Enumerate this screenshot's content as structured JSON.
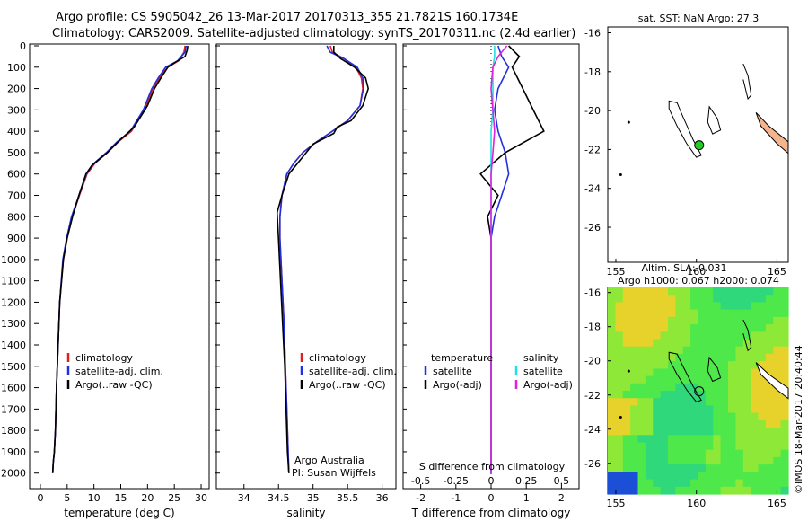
{
  "header": {
    "line1": "Argo profile: CS 5905042_26 13-Mar-2017 20170313_355 21.7821S 160.1734E",
    "line2": "Climatology: CARS2009. Satellite-adjusted climatology: synTS_20170311.nc (2.4d earlier)"
  },
  "colors": {
    "climatology": "#e02020",
    "satellite": "#2030e0",
    "argo": "#000000",
    "sat_salinity": "#20e0e0",
    "argo_salinity_adj": "#e020e0",
    "marker": "#22cc22",
    "land": "#f4b48c"
  },
  "chart_data": [
    {
      "type": "line",
      "id": "temperature",
      "xlabel": "temperature (deg C)",
      "ylabel": "",
      "xlim": [
        -1,
        31
      ],
      "ylim": [
        0,
        2060
      ],
      "xticks": [
        0,
        5,
        10,
        15,
        20,
        25,
        30
      ],
      "yticks": [
        0,
        100,
        200,
        300,
        400,
        500,
        600,
        700,
        800,
        900,
        1000,
        1100,
        1200,
        1300,
        1400,
        1500,
        1600,
        1700,
        1800,
        1900,
        2000
      ],
      "legend": [
        "climatology",
        "satellite-adj. clim.",
        "Argo(..raw -QC)"
      ],
      "series": [
        {
          "name": "climatology",
          "x": [
            27.0,
            26.8,
            25.8,
            23.8,
            22.2,
            21.0,
            19.5,
            17.0,
            14.5,
            12.5,
            10.2,
            8.7,
            7.3,
            5.9,
            5.0,
            4.3,
            3.6,
            3.3,
            3.0,
            2.8,
            2.6,
            2.4,
            2.3
          ],
          "y": [
            0,
            30,
            70,
            100,
            150,
            200,
            300,
            400,
            450,
            500,
            550,
            600,
            700,
            800,
            900,
            1000,
            1200,
            1400,
            1600,
            1800,
            1900,
            1950,
            2000
          ]
        },
        {
          "name": "satellite-adj. clim.",
          "x": [
            27.2,
            27.0,
            25.6,
            23.4,
            22.0,
            20.8,
            19.2,
            16.8,
            14.3,
            12.3,
            10.0,
            8.6,
            7.2,
            5.8,
            4.9,
            4.2,
            3.6,
            3.3,
            3.0,
            2.8,
            2.6,
            2.4,
            2.3
          ],
          "y": [
            0,
            30,
            70,
            100,
            150,
            200,
            300,
            400,
            450,
            500,
            550,
            600,
            700,
            800,
            900,
            1000,
            1200,
            1400,
            1600,
            1800,
            1900,
            1950,
            2000
          ]
        },
        {
          "name": "Argo(..raw -QC)",
          "x": [
            27.5,
            27.4,
            27.0,
            25.0,
            23.8,
            22.5,
            21.3,
            20.0,
            17.5,
            14.5,
            12.5,
            9.6,
            8.5,
            7.2,
            6.0,
            5.0,
            4.3,
            3.6,
            3.3,
            3.0,
            2.8,
            2.6,
            2.4,
            2.3
          ],
          "y": [
            0,
            20,
            50,
            80,
            100,
            150,
            200,
            280,
            380,
            450,
            500,
            560,
            600,
            700,
            800,
            900,
            1000,
            1200,
            1400,
            1600,
            1800,
            1900,
            1950,
            2000
          ]
        }
      ]
    },
    {
      "type": "line",
      "id": "salinity",
      "xlabel": "salinity",
      "xlim": [
        33.6,
        36.2
      ],
      "ylim": [
        0,
        2060
      ],
      "xticks": [
        34,
        34.5,
        35,
        35.5,
        36
      ],
      "legend": [
        "climatology",
        "satellite-adj. clim.",
        "Argo(..raw -QC)"
      ],
      "annotation": [
        "Argo Australia",
        "PI: Susan Wijffels"
      ],
      "series": [
        {
          "name": "climatology",
          "x": [
            35.25,
            35.28,
            35.45,
            35.62,
            35.7,
            35.72,
            35.68,
            35.5,
            35.28,
            35.05,
            34.85,
            34.72,
            34.62,
            34.55,
            34.52,
            34.52,
            34.55,
            34.58,
            34.6,
            34.62,
            34.64,
            34.65
          ],
          "y": [
            0,
            30,
            60,
            100,
            150,
            200,
            280,
            350,
            400,
            450,
            500,
            550,
            600,
            700,
            800,
            900,
            1100,
            1300,
            1500,
            1700,
            1900,
            2000
          ]
        },
        {
          "name": "satellite-adj. clim.",
          "x": [
            35.2,
            35.25,
            35.45,
            35.64,
            35.72,
            35.73,
            35.68,
            35.5,
            35.28,
            35.05,
            34.85,
            34.72,
            34.62,
            34.55,
            34.52,
            34.52,
            34.55,
            34.58,
            34.6,
            34.62,
            34.64,
            34.65
          ],
          "y": [
            0,
            30,
            60,
            100,
            150,
            200,
            280,
            350,
            400,
            450,
            500,
            550,
            600,
            700,
            800,
            900,
            1100,
            1300,
            1500,
            1700,
            1900,
            2000
          ]
        },
        {
          "name": "Argo(..raw -QC)",
          "x": [
            35.3,
            35.3,
            35.4,
            35.6,
            35.76,
            35.8,
            35.72,
            35.55,
            35.35,
            35.3,
            35.0,
            34.85,
            34.65,
            34.55,
            34.48,
            34.5,
            34.53,
            34.56,
            34.59,
            34.61,
            34.63,
            34.65
          ],
          "y": [
            0,
            30,
            60,
            100,
            150,
            200,
            280,
            350,
            380,
            410,
            460,
            520,
            600,
            700,
            780,
            900,
            1100,
            1300,
            1500,
            1700,
            1900,
            2000
          ]
        }
      ]
    },
    {
      "type": "line",
      "id": "difference",
      "xlabel": "T difference from climatology",
      "xlabel_top": "S difference from climatology",
      "xlim": [
        -2.5,
        2.5
      ],
      "ylim": [
        0,
        2060
      ],
      "xticks_T": [
        -2,
        -1,
        0,
        1,
        2
      ],
      "xticks_S": [
        -0.5,
        -0.25,
        0,
        0.25,
        0.5
      ],
      "legend": {
        "temperature_header": "temperature",
        "salinity_header": "salinity",
        "entries": [
          "satellite",
          "Argo(-adj)",
          "satellite",
          "Argo(-adj)"
        ]
      },
      "series": [
        {
          "name": "satellite",
          "x": [
            0.2,
            0.3,
            0.5,
            0.2,
            0.1,
            0.2,
            0.4,
            0.5,
            0.3,
            0.1,
            0.0,
            0.0,
            0.0,
            0.0,
            0.0,
            0.0
          ],
          "y": [
            0,
            50,
            100,
            200,
            300,
            400,
            500,
            600,
            700,
            800,
            900,
            1000,
            1200,
            1500,
            1800,
            2000
          ]
        },
        {
          "name": "Argo(-adj)",
          "x": [
            0.5,
            0.8,
            0.6,
            0.9,
            1.2,
            1.5,
            0.4,
            -0.3,
            0.2,
            -0.1,
            0.0,
            0.0,
            0.0,
            0.0,
            0.0,
            0.0
          ],
          "y": [
            0,
            50,
            100,
            200,
            300,
            400,
            500,
            600,
            700,
            800,
            900,
            1000,
            1200,
            1500,
            1800,
            2000
          ]
        },
        {
          "name": "satellite",
          "x": [
            0.1,
            0.1,
            0.05,
            0.05,
            0.05,
            0.0,
            0.0,
            0.0,
            0.0,
            0.0,
            0.0,
            0.0,
            0.0,
            0.0,
            0.0
          ],
          "y": [
            0,
            50,
            100,
            200,
            300,
            400,
            500,
            600,
            700,
            800,
            1000,
            1200,
            1500,
            1800,
            2000
          ]
        },
        {
          "name": "Argo(-adj)",
          "x": [
            0.45,
            0.2,
            0.05,
            0.0,
            0.05,
            0.1,
            0.05,
            0.0,
            0.0,
            0.0,
            0.0,
            0.0,
            0.0,
            0.0,
            0.0
          ],
          "y": [
            0,
            50,
            100,
            200,
            300,
            400,
            500,
            600,
            700,
            800,
            1000,
            1200,
            1500,
            1800,
            2000
          ]
        }
      ]
    },
    {
      "type": "scatter",
      "id": "sst-map",
      "title": "sat. SST: NaN Argo: 27.3",
      "xlim": [
        154.5,
        165.7
      ],
      "ylim": [
        -27.8,
        -15.7
      ],
      "xticks": [
        155,
        160,
        165
      ],
      "yticks": [
        -16,
        -18,
        -20,
        -22,
        -24,
        -26
      ],
      "point": {
        "x": 160.17,
        "y": -21.78
      }
    },
    {
      "type": "heatmap",
      "id": "sla-map",
      "title1": "Altim. SLA: 0.031",
      "title2": "Argo h1000: 0.067 h2000: 0.074",
      "xlim": [
        154.5,
        165.7
      ],
      "ylim": [
        -27.8,
        -15.7
      ],
      "xticks": [
        155,
        160,
        165
      ],
      "yticks": [
        -16,
        -18,
        -20,
        -22,
        -24,
        -26
      ],
      "point": {
        "x": 160.17,
        "y": -21.78
      }
    }
  ],
  "footer": {
    "watermark": "©IMOS 18-Mar-2017 20:40:44"
  }
}
